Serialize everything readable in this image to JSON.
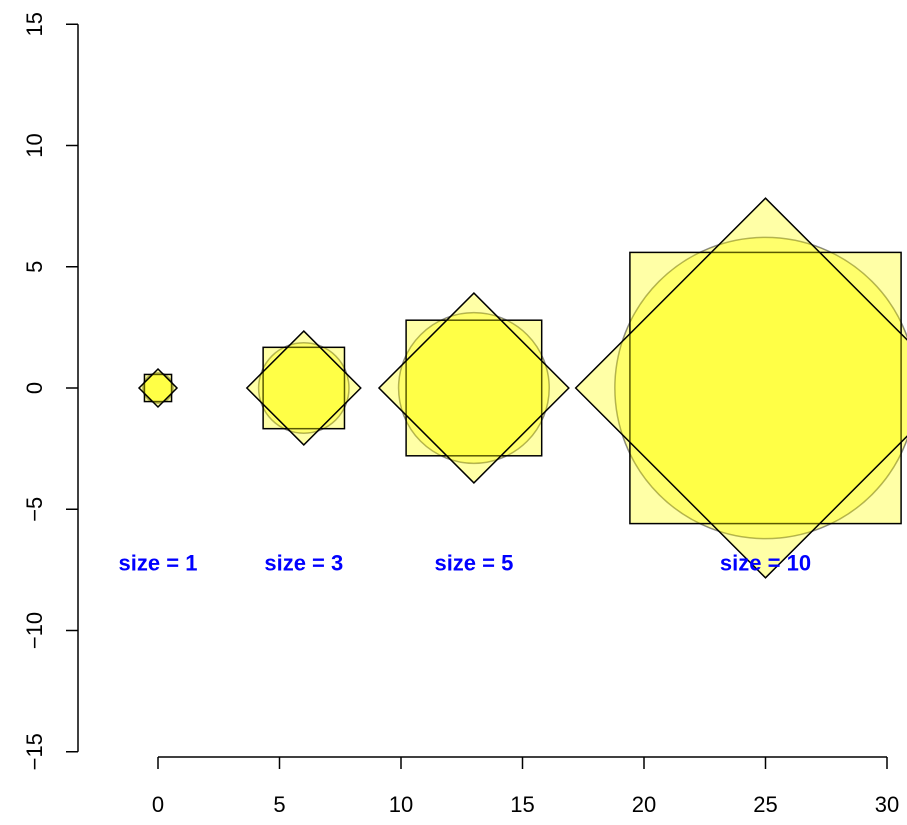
{
  "chart_data": {
    "type": "scatter",
    "title": "",
    "xlabel": "",
    "ylabel": "",
    "xlim": [
      0,
      30
    ],
    "ylim": [
      -15,
      15
    ],
    "x_ticks": [
      0,
      5,
      10,
      15,
      20,
      25,
      30
    ],
    "y_ticks": [
      -15,
      -10,
      -5,
      0,
      5,
      10,
      15
    ],
    "x_tick_labels": [
      "0",
      "5",
      "10",
      "15",
      "20",
      "25",
      "30"
    ],
    "y_tick_labels": [
      "−15",
      "−10",
      "−5",
      "0",
      "5",
      "10",
      "15"
    ],
    "grid": false,
    "legend": "none",
    "fill_color": "#FFFF00",
    "fill_alpha": 0.35,
    "outline_color": "#000000",
    "label_color": "#0000FF",
    "points": [
      {
        "x": 0,
        "y": 0,
        "size": 1,
        "label": "size = 1",
        "label_y": -7.2
      },
      {
        "x": 6,
        "y": 0,
        "size": 3,
        "label": "size = 3",
        "label_y": -7.2
      },
      {
        "x": 13,
        "y": 0,
        "size": 5,
        "label": "size = 5",
        "label_y": -7.2
      },
      {
        "x": 25,
        "y": 0,
        "size": 10,
        "label": "size = 10",
        "label_y": -7.2
      }
    ]
  }
}
